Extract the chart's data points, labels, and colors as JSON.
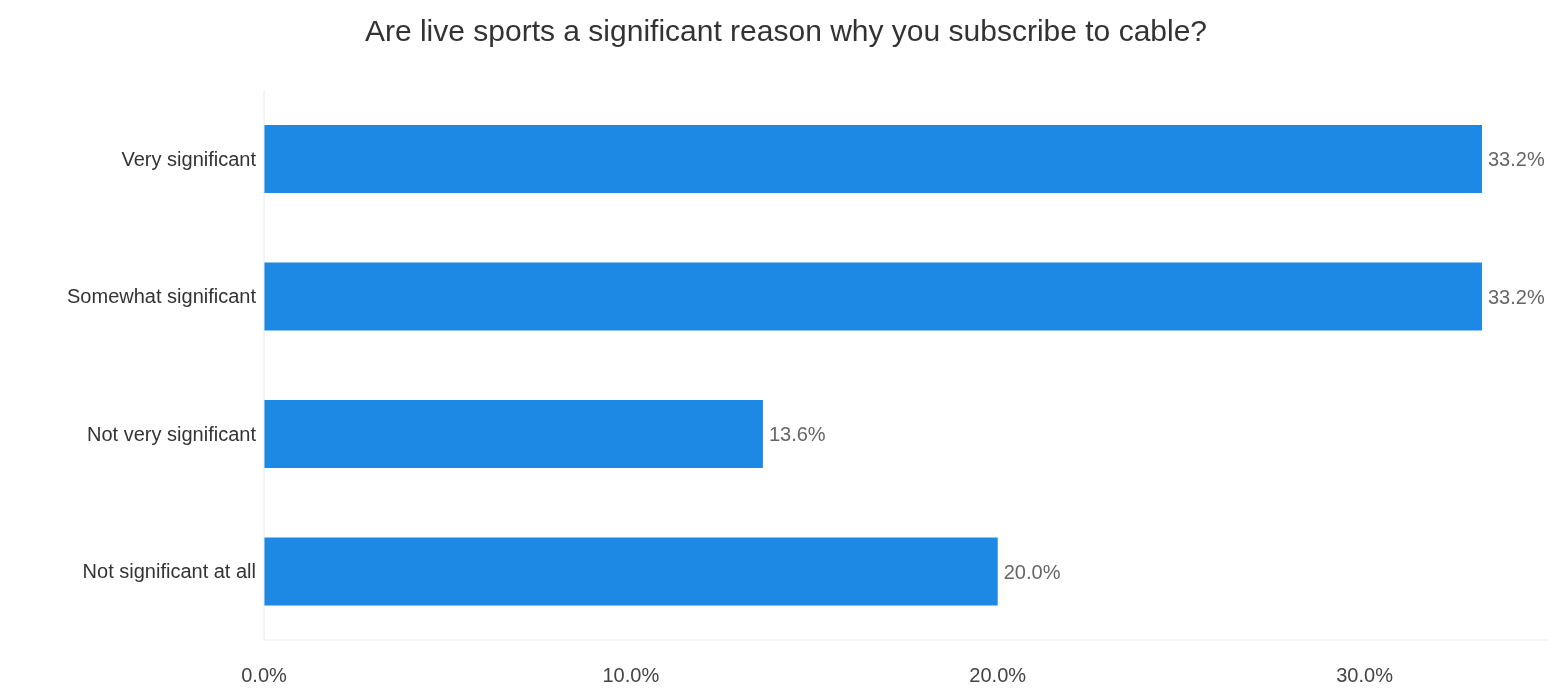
{
  "chart_data": {
    "type": "bar",
    "orientation": "horizontal",
    "title": "Are live sports a significant reason why you subscribe to cable?",
    "categories": [
      "Very significant",
      "Somewhat significant",
      "Not very significant",
      "Not significant at all"
    ],
    "values": [
      33.2,
      33.2,
      13.6,
      20.0
    ],
    "value_labels": [
      "33.2%",
      "33.2%",
      "13.6%",
      "20.0%"
    ],
    "color": "#1e88e5",
    "xlim": [
      0,
      35
    ],
    "xticks": [
      {
        "value": 0,
        "label": "0.0%"
      },
      {
        "value": 10,
        "label": "10.0%"
      },
      {
        "value": 20,
        "label": "20.0%"
      },
      {
        "value": 30,
        "label": "30.0%"
      }
    ],
    "grid": false
  }
}
